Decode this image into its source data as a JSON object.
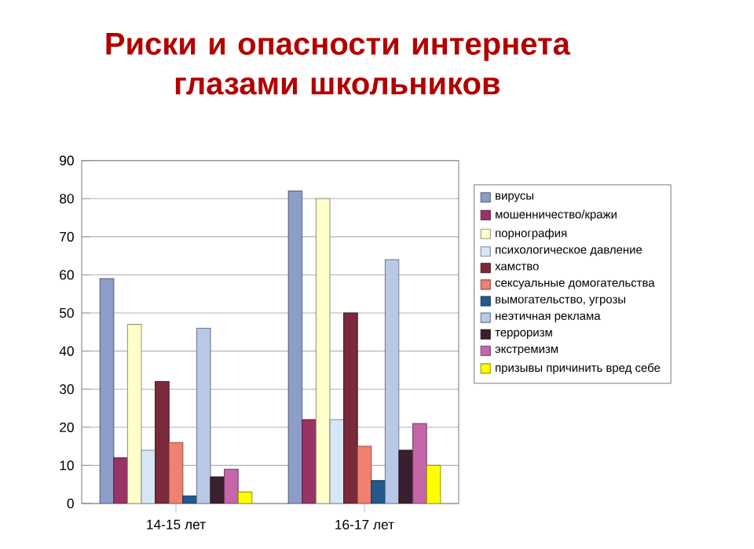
{
  "chart_data": {
    "type": "bar",
    "title": "Риски и опасности интернета глазами школьников",
    "categories": [
      "14-15 лет",
      "16-17 лет"
    ],
    "series": [
      {
        "name": "вирусы",
        "color": "#8c9dc8",
        "values": [
          59,
          82
        ]
      },
      {
        "name": "мошенничество/кражи",
        "color": "#993366",
        "values": [
          12,
          22
        ]
      },
      {
        "name": "порнография",
        "color": "#ffffcc",
        "values": [
          47,
          80
        ]
      },
      {
        "name": "психологическое давление",
        "color": "#d6e6f4",
        "values": [
          14,
          22
        ]
      },
      {
        "name": "хамство",
        "color": "#7a2a3a",
        "values": [
          32,
          50
        ]
      },
      {
        "name": "сексуальные домогательства",
        "color": "#f08070",
        "values": [
          16,
          15
        ]
      },
      {
        "name": "вымогательство, угрозы",
        "color": "#22598f",
        "values": [
          2,
          6
        ]
      },
      {
        "name": "неэтичная реклама",
        "color": "#b8c8e6",
        "values": [
          46,
          64
        ]
      },
      {
        "name": "терроризм",
        "color": "#3a1f2e",
        "values": [
          7,
          14
        ]
      },
      {
        "name": "экстремизм",
        "color": "#c466a8",
        "values": [
          9,
          21
        ]
      },
      {
        "name": "призывы причинить вред себе",
        "color": "#ffff00",
        "values": [
          3,
          10
        ]
      }
    ],
    "ylim": [
      0,
      90
    ],
    "yticks": [
      0,
      10,
      20,
      30,
      40,
      50,
      60,
      70,
      80,
      90
    ],
    "grid": "y",
    "legend": "right"
  }
}
